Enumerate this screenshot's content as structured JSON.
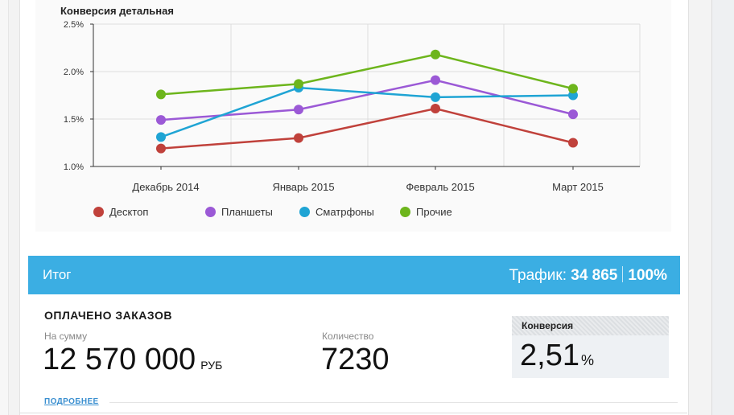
{
  "chart_data": {
    "type": "line",
    "title": "Конверсия детальная",
    "categories": [
      "Декабрь 2014",
      "Январь 2015",
      "Февраль 2015",
      "Март 2015"
    ],
    "ylim": [
      1.0,
      2.5
    ],
    "yticks": [
      "1.0%",
      "1.5%",
      "2.0%",
      "2.5%"
    ],
    "ytick_values": [
      1.0,
      1.5,
      2.0,
      2.5
    ],
    "grid": true,
    "legend_position": "bottom",
    "series": [
      {
        "name": "Десктоп",
        "color": "#c0413b",
        "values": [
          1.19,
          1.3,
          1.61,
          1.25
        ]
      },
      {
        "name": "Планшеты",
        "color": "#9b59d6",
        "values": [
          1.49,
          1.6,
          1.91,
          1.55
        ]
      },
      {
        "name": "Сматрфоны",
        "color": "#1fa4d4",
        "values": [
          1.31,
          1.83,
          1.73,
          1.75
        ]
      },
      {
        "name": "Прочие",
        "color": "#6db51c",
        "values": [
          1.76,
          1.87,
          2.18,
          1.82
        ]
      }
    ]
  },
  "summary": {
    "title": "Итог",
    "traffic_label": "Трафик:",
    "traffic_value": "34 865",
    "traffic_percent": "100%"
  },
  "orders": {
    "title": "ОПЛАЧЕНО ЗАКАЗОВ",
    "sum_label": "На сумму",
    "sum_value": "12 570 000",
    "currency": "РУБ",
    "count_label": "Количество",
    "count_value": "7230"
  },
  "conversion": {
    "label": "Конверсия",
    "value": "2,51",
    "unit": "%"
  },
  "more_link": "ПОДРОБНЕЕ"
}
